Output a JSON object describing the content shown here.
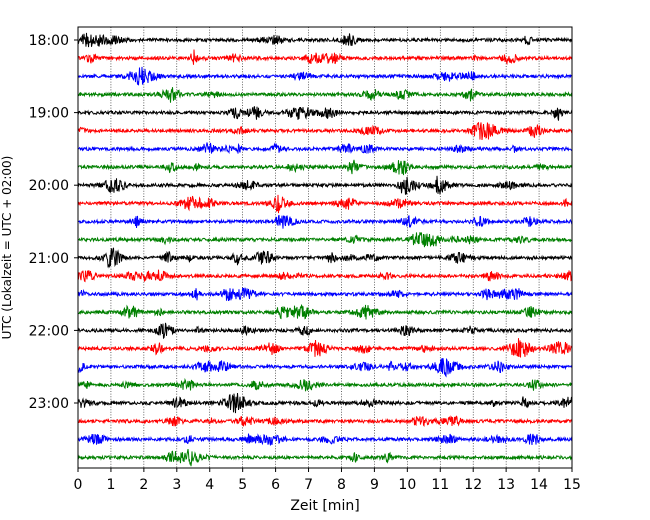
{
  "chart_data": {
    "type": "line",
    "title": "",
    "xlabel": "Zeit  [min]",
    "ylabel": "UTC (Lokalzeit = UTC + 02:00)",
    "xlim": [
      0,
      15
    ],
    "x_ticks": [
      0,
      1,
      2,
      3,
      4,
      5,
      6,
      7,
      8,
      9,
      10,
      11,
      12,
      13,
      14,
      15
    ],
    "x_tick_labels": [
      "0",
      "1",
      "2",
      "3",
      "4",
      "5",
      "6",
      "7",
      "8",
      "9",
      "10",
      "11",
      "12",
      "13",
      "14",
      "15"
    ],
    "y_tick_labels": [
      "18:00",
      "19:00",
      "20:00",
      "21:00",
      "22:00",
      "23:00"
    ],
    "grid_x": true,
    "trace_colors": [
      "#000000",
      "#ff0000",
      "#0000ff",
      "#008000"
    ],
    "trace_count": 24,
    "trace_interval_min": 15
  }
}
